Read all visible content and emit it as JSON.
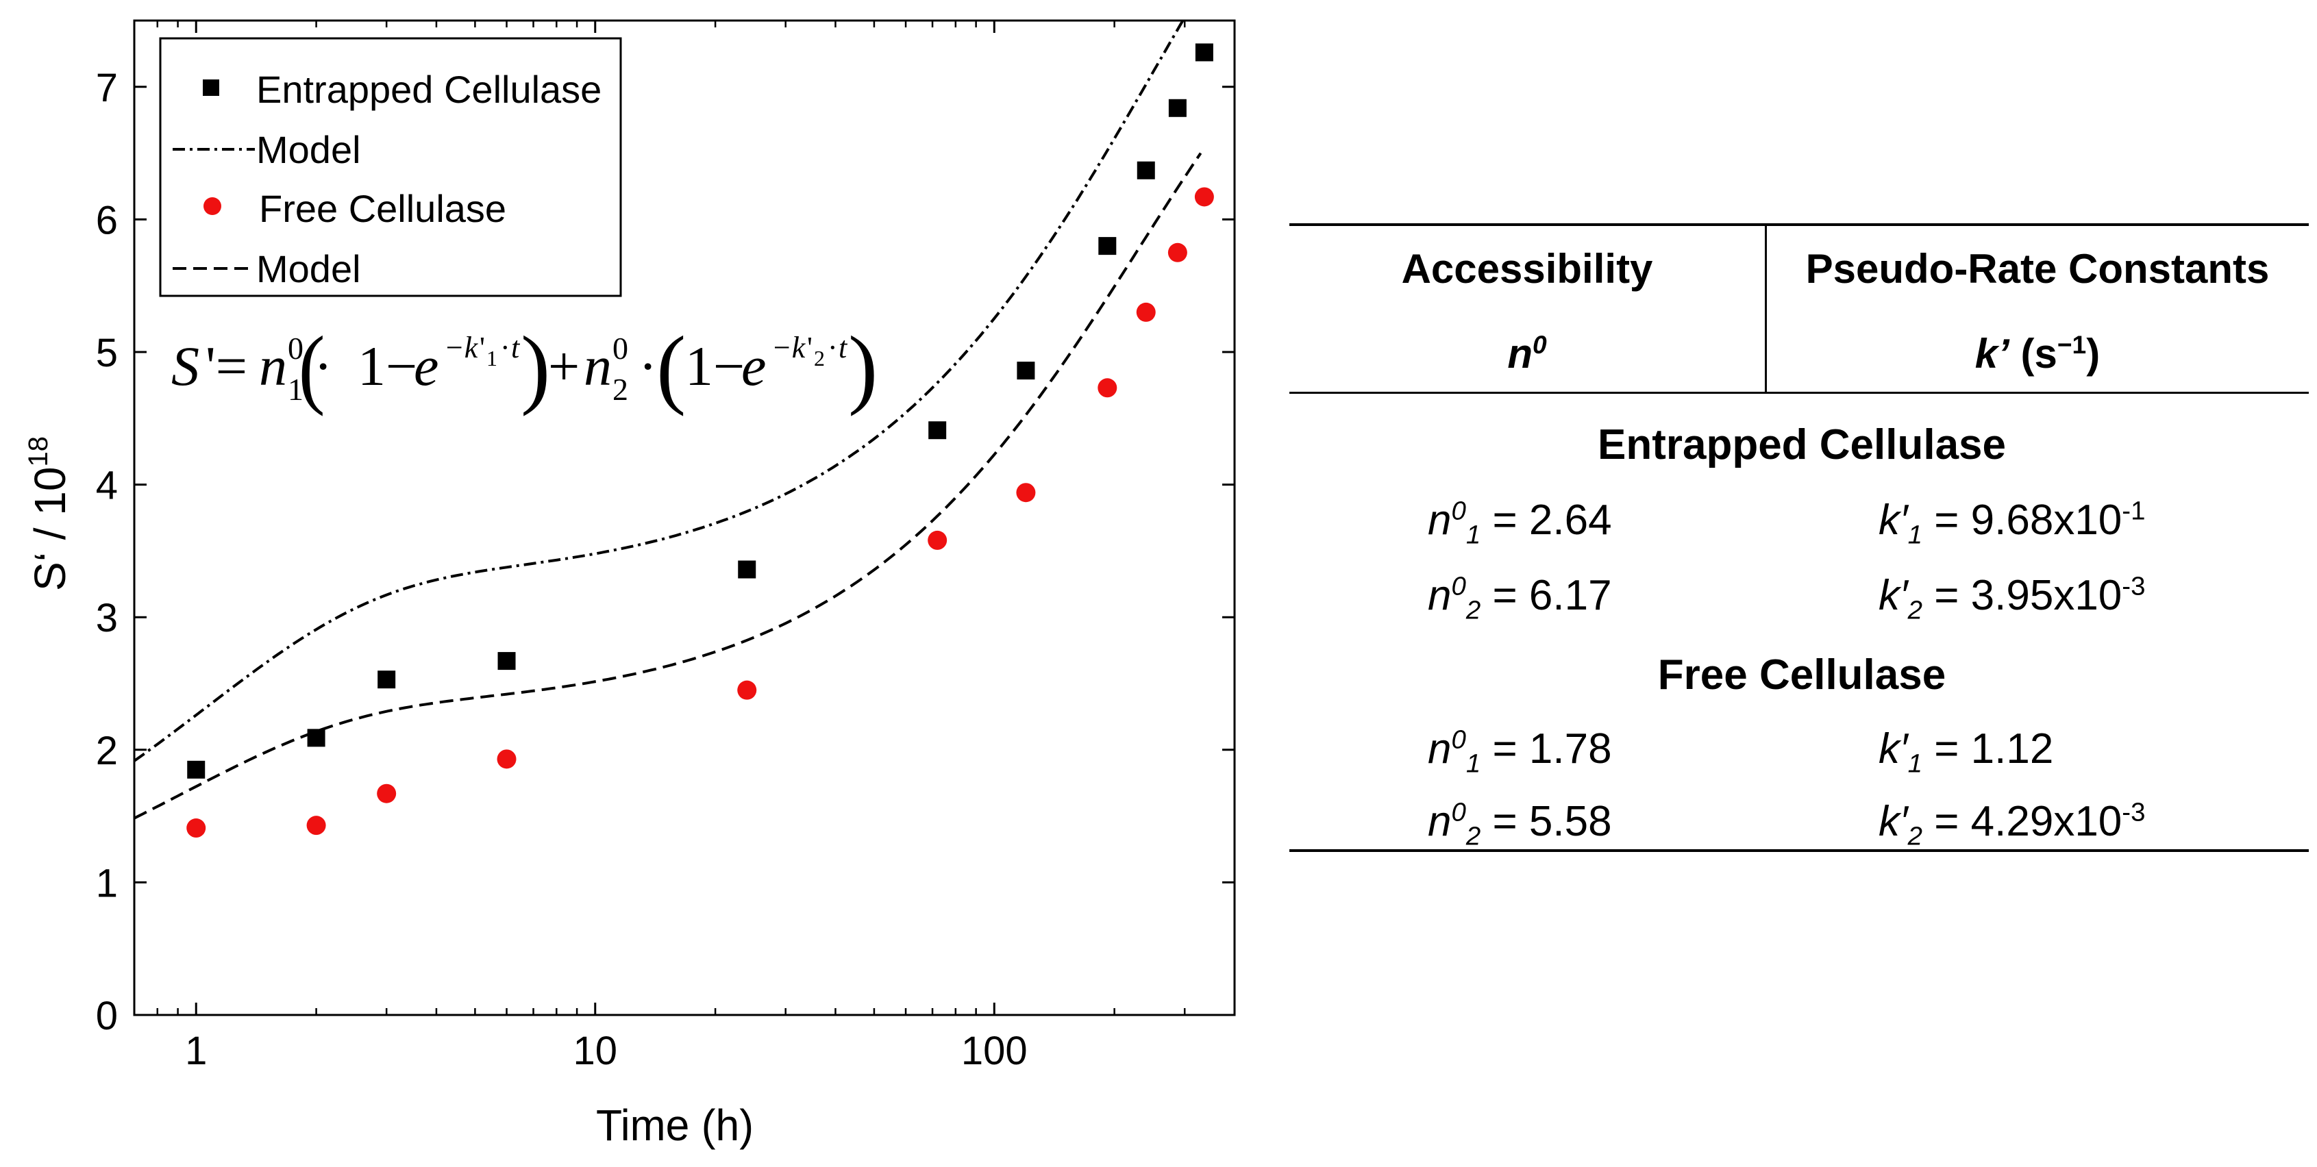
{
  "chart_data": {
    "type": "scatter",
    "xscale": "log",
    "xlim": [
      0.7,
      400
    ],
    "ylim": [
      0,
      7.5
    ],
    "xlabel": "Time (h)",
    "ylabel_main": "S‘ / 10",
    "ylabel_exp": "18",
    "xticks": [
      1,
      10,
      100
    ],
    "xtick_labels": [
      "1",
      "10",
      "100"
    ],
    "yticks": [
      0,
      1,
      2,
      3,
      4,
      5,
      6,
      7
    ],
    "ytick_labels": [
      "0",
      "1",
      "2",
      "3",
      "4",
      "5",
      "6",
      "7"
    ],
    "formula": "S'=n₁⁰·(1−e^(−k'₁·t))+n₂⁰·(1−e^(−k'₂·t))",
    "series": [
      {
        "name": "Entrapped Cellulase",
        "marker": "square",
        "color": "#000000",
        "x": [
          1,
          2,
          3,
          6,
          24,
          72,
          120,
          192,
          240,
          288,
          336
        ],
        "y": [
          1.85,
          2.09,
          2.53,
          2.67,
          3.36,
          4.41,
          4.86,
          5.8,
          6.37,
          6.84,
          7.26
        ]
      },
      {
        "name": "Model",
        "line": "dashdot",
        "color": "#000000",
        "n1": 2.64,
        "k1": 0.968,
        "n2": 6.17,
        "k2": 0.00395,
        "x_offset": 0.6
      },
      {
        "name": "Free Cellulase",
        "marker": "circle",
        "color": "#ee1111",
        "x": [
          1,
          2,
          3,
          6,
          24,
          72,
          120,
          192,
          240,
          288,
          336
        ],
        "y": [
          1.41,
          1.43,
          1.67,
          1.93,
          2.45,
          3.58,
          3.94,
          4.73,
          5.3,
          5.75,
          6.17
        ]
      },
      {
        "name": "Model",
        "line": "dashed",
        "color": "#000000",
        "n1": 1.78,
        "k1": 1.12,
        "n2": 5.58,
        "k2": 0.00429,
        "x_offset": 0.5
      }
    ]
  },
  "table": {
    "col1_header": "Accessibility",
    "col1_sub": "n",
    "col1_sub_sup": "0",
    "col2_header": "Pseudo-Rate Constants",
    "col2_sub_k": "k’",
    "col2_sub_unit": " (s",
    "col2_sub_exp": "−1",
    "col2_sub_close": ")",
    "groups": [
      {
        "name": "Entrapped Cellulase",
        "rows": [
          {
            "n_sub": "1",
            "n_val": " = 2.64",
            "k_sub": "1",
            "k_val": " = 9.68x10",
            "k_exp": "-1"
          },
          {
            "n_sub": "2",
            "n_val": " = 6.17",
            "k_sub": "2",
            "k_val": " = 3.95x10",
            "k_exp": "-3"
          }
        ]
      },
      {
        "name": "Free Cellulase",
        "rows": [
          {
            "n_sub": "1",
            "n_val": " = 1.78",
            "k_sub": "1",
            "k_val": " = 1.12",
            "k_exp": ""
          },
          {
            "n_sub": "2",
            "n_val": " = 5.58",
            "k_sub": "2",
            "k_val": " = 4.29x10",
            "k_exp": "-3"
          }
        ]
      }
    ],
    "n_symbol": "n",
    "n_sup": "0",
    "k_symbol": "k′"
  }
}
